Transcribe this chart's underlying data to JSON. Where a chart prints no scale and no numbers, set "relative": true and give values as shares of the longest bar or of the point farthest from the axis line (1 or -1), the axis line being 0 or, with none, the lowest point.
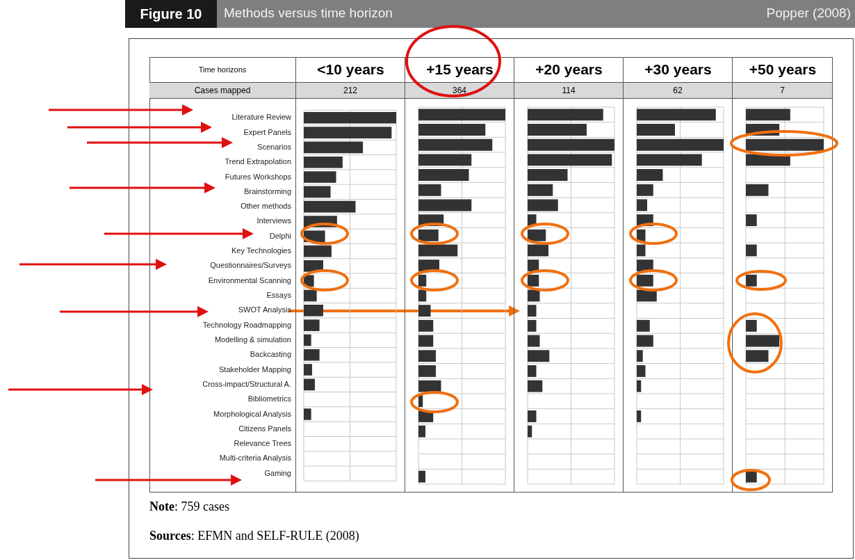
{
  "chart_data": [
    {
      "type": "other",
      "title": "Figure 10",
      "subtitle": "Methods versus time horizon",
      "annotations": [
        "Popper (2008)",
        "Time horizons",
        "Cases mapped",
        "Note: 759 cases",
        "Sources: EFMN and SELF-RULE (2008)"
      ]
    },
    {
      "type": "bar",
      "orientation": "horizontal",
      "relative": true,
      "grid": true,
      "tick_labels": "y",
      "title": "<10 years",
      "subtitle": "212",
      "color": "#333333",
      "categories": [
        "Literature Review",
        "Expert Panels",
        "Scenarios",
        "Trend Extrapolation",
        "Futures Workshops",
        "Brainstorming",
        "Other methods",
        "Interviews",
        "Delphi",
        "Key Technologies",
        "Questionnaires/Surveys",
        "Environmental Scanning",
        "Essays",
        "SWOT Analysis",
        "Technology Roadmapping",
        "Modelling & simulation",
        "Backcasting",
        "Stakeholder Mapping",
        "Cross-impact/Structural A.",
        "Bibliometrics",
        "Morphological Analysis",
        "Citizens Panels",
        "Relevance Trees",
        "Multi-criteria Analysis",
        "Gaming"
      ],
      "values": [
        1,
        0.95,
        0.64,
        0.42,
        0.35,
        0.29,
        0.56,
        0.36,
        0.23,
        0.3,
        0.21,
        0.11,
        0.14,
        0.21,
        0.17,
        0.08,
        0.17,
        0.09,
        0.12,
        0,
        0.08,
        0,
        0,
        0,
        0
      ]
    },
    {
      "type": "bar",
      "orientation": "horizontal",
      "relative": true,
      "grid": true,
      "tick_labels": false,
      "title": "+15 years",
      "subtitle": "364",
      "color": "#333333",
      "categories": [
        null,
        null,
        null,
        null,
        null,
        null,
        null,
        null,
        null,
        null,
        null,
        null,
        null,
        null,
        null,
        null,
        null,
        null,
        null,
        null,
        null,
        null,
        null,
        null,
        null
      ],
      "values": [
        1,
        0.77,
        0.85,
        0.61,
        0.58,
        0.26,
        0.61,
        0.29,
        0.23,
        0.45,
        0.24,
        0.09,
        0.09,
        0.14,
        0.17,
        0.17,
        0.2,
        0.2,
        0.26,
        0.05,
        0.17,
        0.08,
        0,
        0,
        0.08
      ]
    },
    {
      "type": "bar",
      "orientation": "horizontal",
      "relative": true,
      "grid": true,
      "tick_labels": false,
      "title": "+20 years",
      "subtitle": "114",
      "color": "#333333",
      "categories": [
        null,
        null,
        null,
        null,
        null,
        null,
        null,
        null,
        null,
        null,
        null,
        null,
        null,
        null,
        null,
        null,
        null,
        null,
        null,
        null,
        null,
        null,
        null,
        null,
        null
      ],
      "values": [
        0.87,
        0.68,
        1,
        0.97,
        0.46,
        0.29,
        0.35,
        0.1,
        0.21,
        0.24,
        0.13,
        0.13,
        0.14,
        0.1,
        0.1,
        0.14,
        0.25,
        0.1,
        0.17,
        0,
        0.1,
        0.05,
        0,
        0,
        0
      ]
    },
    {
      "type": "bar",
      "orientation": "horizontal",
      "relative": true,
      "grid": true,
      "tick_labels": false,
      "title": "+30 years",
      "subtitle": "62",
      "color": "#333333",
      "categories": [
        null,
        null,
        null,
        null,
        null,
        null,
        null,
        null,
        null,
        null,
        null,
        null,
        null,
        null,
        null,
        null,
        null,
        null,
        null,
        null,
        null,
        null,
        null,
        null,
        null
      ],
      "values": [
        0.91,
        0.44,
        1,
        0.75,
        0.3,
        0.19,
        0.12,
        0.19,
        0.1,
        0.1,
        0.19,
        0.19,
        0.23,
        0,
        0.15,
        0.19,
        0.07,
        0.1,
        0.05,
        0,
        0.05,
        0,
        0,
        0,
        0
      ]
    },
    {
      "type": "bar",
      "orientation": "horizontal",
      "relative": true,
      "grid": true,
      "tick_labels": false,
      "title": "+50 years",
      "subtitle": "7",
      "color": "#333333",
      "categories": [
        null,
        null,
        null,
        null,
        null,
        null,
        null,
        null,
        null,
        null,
        null,
        null,
        null,
        null,
        null,
        null,
        null,
        null,
        null,
        null,
        null,
        null,
        null,
        null,
        null
      ],
      "values": [
        0.57,
        0.43,
        1,
        0.57,
        0,
        0.29,
        0,
        0.14,
        0,
        0.14,
        0,
        0.14,
        0,
        0,
        0.14,
        0.43,
        0.29,
        0,
        0,
        0,
        0,
        0,
        0,
        0,
        0.14
      ]
    }
  ]
}
